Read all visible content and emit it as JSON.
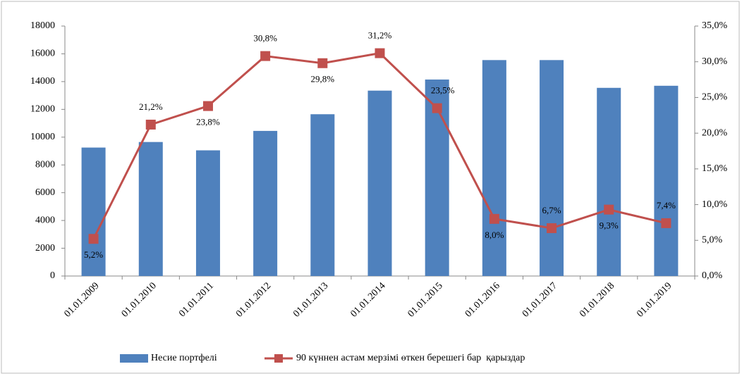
{
  "chart_data": {
    "type": "bar_line",
    "categories": [
      "01.01.2009",
      "01.01.2010",
      "01.01.2011",
      "01.01.2012",
      "01.01.2013",
      "01.01.2014",
      "01.01.2015",
      "01.01.2016",
      "01.01.2017",
      "01.01.2018",
      "01.01.2019"
    ],
    "series": [
      {
        "name": "Несие портфелі",
        "type": "bar",
        "color": "#4f81bd",
        "values": [
          9250,
          9650,
          9050,
          10450,
          11650,
          13350,
          14150,
          15550,
          15550,
          13550,
          13700
        ]
      },
      {
        "name": "90 күннен астам мерзімі өткен берешегі бар  қарыздар",
        "type": "line",
        "axis": "y2",
        "color": "#c0504d",
        "values": [
          5.2,
          21.2,
          23.8,
          30.8,
          29.8,
          31.2,
          23.5,
          8.0,
          6.7,
          9.3,
          7.4
        ],
        "value_labels": [
          "5,2%",
          "21,2%",
          "23,8%",
          "30,8%",
          "29,8%",
          "31,2%",
          "23,5%",
          "8,0%",
          "6,7%",
          "9,3%",
          "7,4%"
        ]
      }
    ],
    "ylim": [
      0,
      18000
    ],
    "yticks": [
      0,
      2000,
      4000,
      6000,
      8000,
      10000,
      12000,
      14000,
      16000,
      18000
    ],
    "y2lim": [
      0,
      35
    ],
    "y2ticks": [
      {
        "value": 0,
        "label": "0,0%"
      },
      {
        "value": 5,
        "label": "5,0%"
      },
      {
        "value": 10,
        "label": "10,0%"
      },
      {
        "value": 15,
        "label": "15,0%"
      },
      {
        "value": 20,
        "label": "20,0%"
      },
      {
        "value": 25,
        "label": "25,0%"
      },
      {
        "value": 30,
        "label": "30,0%"
      },
      {
        "value": 35,
        "label": "35,0%"
      }
    ],
    "grid": false
  }
}
